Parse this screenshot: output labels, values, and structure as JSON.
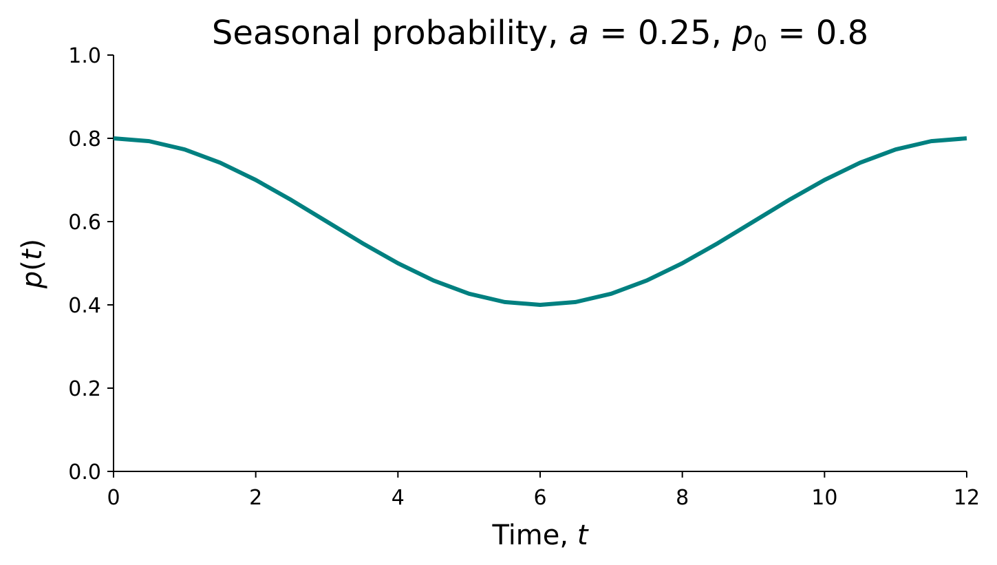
{
  "chart_data": {
    "type": "line",
    "title": {
      "prefix": "Seasonal probability, ",
      "a_symbol": "a",
      "a_value": " = 0.25, ",
      "p_symbol": "p",
      "p_subscript": "0",
      "p_value": " = 0.8"
    },
    "xlabel": {
      "text": "Time, ",
      "symbol": "t"
    },
    "ylabel": {
      "p": "p",
      "open": "(",
      "t": "t",
      "close": ")"
    },
    "xlim": [
      0,
      12
    ],
    "ylim": [
      0,
      1
    ],
    "xticks": [
      0,
      2,
      4,
      6,
      8,
      10,
      12
    ],
    "yticks": [
      0.0,
      0.2,
      0.4,
      0.6,
      0.8,
      1.0
    ],
    "xtick_labels": [
      "0",
      "2",
      "4",
      "6",
      "8",
      "10",
      "12"
    ],
    "ytick_labels": [
      "0.0",
      "0.2",
      "0.4",
      "0.6",
      "0.8",
      "1.0"
    ],
    "grid": false,
    "series": [
      {
        "color": "#008080",
        "x": [
          0,
          0.5,
          1,
          1.5,
          2,
          2.5,
          3,
          3.5,
          4,
          4.5,
          5,
          5.5,
          6,
          6.5,
          7,
          7.5,
          8,
          8.5,
          9,
          9.5,
          10,
          10.5,
          11,
          11.5,
          12
        ],
        "y": [
          0.8,
          0.7932,
          0.7732,
          0.7414,
          0.7,
          0.6518,
          0.6,
          0.5482,
          0.5,
          0.4586,
          0.4268,
          0.4068,
          0.4,
          0.4068,
          0.4268,
          0.4586,
          0.5,
          0.5482,
          0.6,
          0.6518,
          0.7,
          0.7414,
          0.7732,
          0.7932,
          0.8
        ]
      }
    ]
  }
}
